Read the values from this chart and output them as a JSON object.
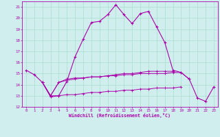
{
  "xlabel": "Windchill (Refroidissement éolien,°C)",
  "bg_color": "#d0eeee",
  "grid_color": "#aaddcc",
  "line_color": "#aa00aa",
  "x": [
    0,
    1,
    2,
    3,
    4,
    5,
    6,
    7,
    8,
    9,
    10,
    11,
    12,
    13,
    14,
    15,
    16,
    17,
    18,
    19,
    20,
    21,
    22,
    23
  ],
  "line1": [
    15.3,
    14.9,
    14.2,
    12.9,
    13.0,
    14.3,
    16.5,
    18.1,
    19.6,
    19.7,
    20.3,
    21.2,
    20.3,
    19.5,
    20.4,
    20.6,
    19.2,
    17.8,
    15.3,
    15.1,
    14.5,
    12.8,
    12.5,
    13.8
  ],
  "line2": [
    null,
    null,
    14.2,
    13.0,
    14.2,
    14.4,
    14.5,
    14.6,
    14.7,
    14.7,
    14.8,
    14.8,
    14.9,
    14.9,
    15.0,
    15.0,
    15.0,
    15.0,
    15.1,
    15.1,
    14.5,
    null,
    null,
    null
  ],
  "line3": [
    null,
    null,
    14.2,
    13.0,
    13.0,
    13.1,
    13.1,
    13.2,
    13.3,
    13.3,
    13.4,
    13.4,
    13.5,
    13.5,
    13.6,
    13.6,
    13.7,
    13.7,
    13.7,
    13.8,
    null,
    null,
    null,
    null
  ],
  "line4": [
    null,
    null,
    14.2,
    13.0,
    14.2,
    14.5,
    14.6,
    14.6,
    14.7,
    14.7,
    14.8,
    14.9,
    15.0,
    15.0,
    15.1,
    15.2,
    15.2,
    15.2,
    15.2,
    null,
    null,
    null,
    null,
    null
  ],
  "ylim": [
    12,
    21.5
  ],
  "xlim": [
    -0.5,
    23.5
  ],
  "yticks": [
    12,
    13,
    14,
    15,
    16,
    17,
    18,
    19,
    20,
    21
  ]
}
